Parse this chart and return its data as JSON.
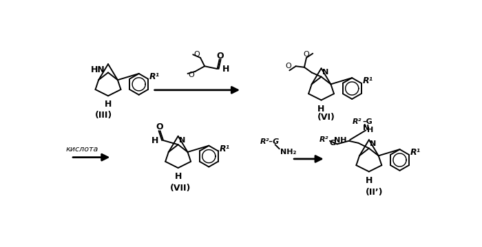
{
  "bg_color": "#ffffff",
  "fig_width": 7.0,
  "fig_height": 3.59,
  "dpi": 100,
  "label_III": "(III)",
  "label_VI": "(VI)",
  "label_VII": "(VII)",
  "label_IIp": "(II’)",
  "label_kislota": "кислота"
}
